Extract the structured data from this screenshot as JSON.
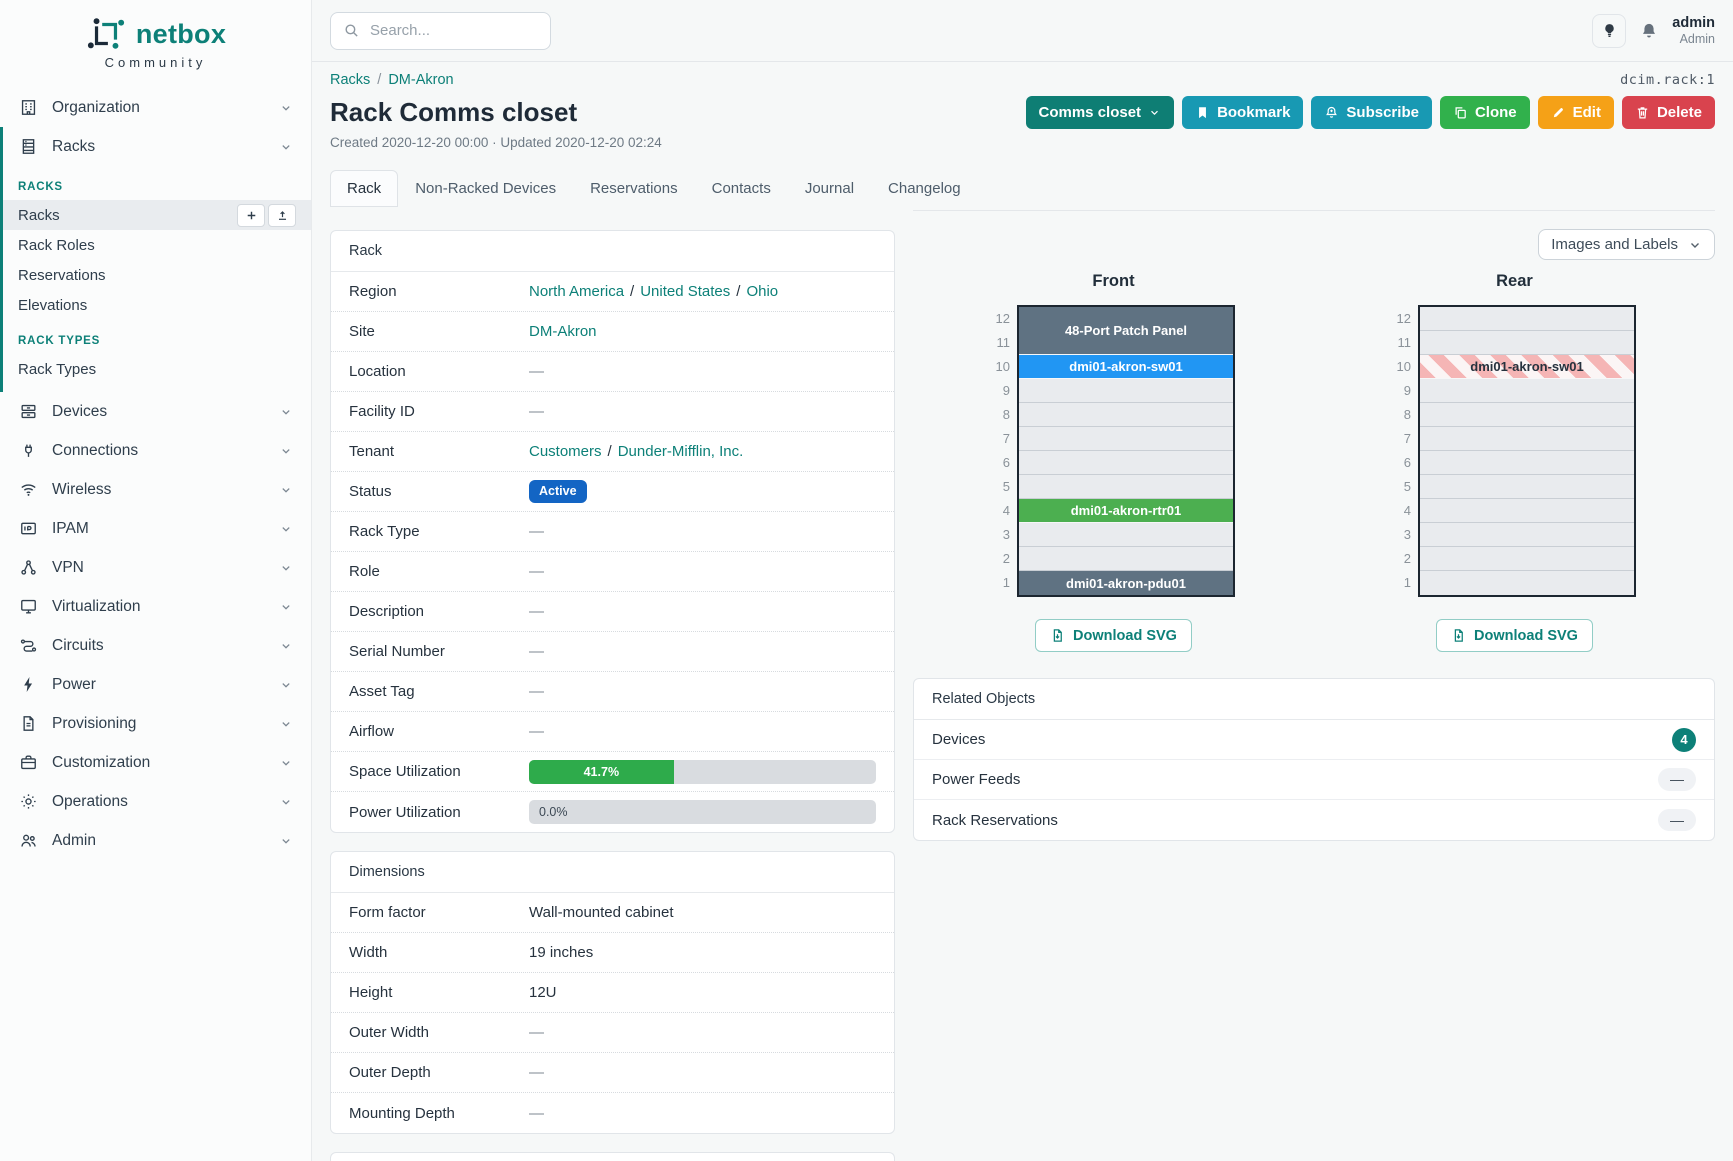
{
  "colors": {
    "accent_teal": "#0d8078",
    "status_active_badge": "#1365c4",
    "progress_green": "#2eab4b",
    "device_blue": "#2196f3",
    "device_green": "#4caf50",
    "device_slate": "#5f7282",
    "button_info": "#1899b3",
    "button_success": "#31b14c",
    "button_warning": "#f5a117",
    "button_danger": "#d9434e"
  },
  "brand": {
    "name": "netbox",
    "subtitle": "Community"
  },
  "header": {
    "search_placeholder": "Search...",
    "user_name": "admin",
    "user_role": "Admin"
  },
  "sidebar": {
    "top_group": {
      "label": "Organization",
      "icon": "building-icon"
    },
    "expanded_group": {
      "label": "Racks",
      "icon": "rack-icon",
      "sections": [
        {
          "title": "RACKS",
          "items": [
            {
              "label": "Racks",
              "active": true
            },
            {
              "label": "Rack Roles"
            },
            {
              "label": "Reservations"
            },
            {
              "label": "Elevations"
            }
          ]
        },
        {
          "title": "RACK TYPES",
          "items": [
            {
              "label": "Rack Types"
            }
          ]
        }
      ]
    },
    "groups": [
      {
        "label": "Devices",
        "icon": "server-icon"
      },
      {
        "label": "Connections",
        "icon": "plug-icon"
      },
      {
        "label": "Wireless",
        "icon": "wifi-icon"
      },
      {
        "label": "IPAM",
        "icon": "ip-card-icon"
      },
      {
        "label": "VPN",
        "icon": "network-icon"
      },
      {
        "label": "Virtualization",
        "icon": "monitor-icon"
      },
      {
        "label": "Circuits",
        "icon": "route-icon"
      },
      {
        "label": "Power",
        "icon": "bolt-icon"
      },
      {
        "label": "Provisioning",
        "icon": "document-icon"
      },
      {
        "label": "Customization",
        "icon": "briefcase-icon"
      },
      {
        "label": "Operations",
        "icon": "gear-icon"
      },
      {
        "label": "Admin",
        "icon": "users-icon"
      }
    ]
  },
  "page": {
    "breadcrumb": [
      "Racks",
      "DM-Akron"
    ],
    "object_id": "dcim.rack:1",
    "title": "Rack Comms closet",
    "meta": "Created 2020-12-20 00:00 · Updated 2020-12-20 02:24",
    "actions": [
      {
        "label": "Comms closet",
        "style": "context",
        "chevron": true
      },
      {
        "label": "Bookmark",
        "icon": "bookmark-icon",
        "style": "info"
      },
      {
        "label": "Subscribe",
        "icon": "bell-plus-icon",
        "style": "info"
      },
      {
        "label": "Clone",
        "icon": "copy-icon",
        "style": "success"
      },
      {
        "label": "Edit",
        "icon": "pencil-icon",
        "style": "warning"
      },
      {
        "label": "Delete",
        "icon": "trash-icon",
        "style": "danger"
      }
    ],
    "tabs": [
      {
        "label": "Rack",
        "active": true
      },
      {
        "label": "Non-Racked Devices"
      },
      {
        "label": "Reservations"
      },
      {
        "label": "Contacts"
      },
      {
        "label": "Journal"
      },
      {
        "label": "Changelog"
      }
    ]
  },
  "rack_panel": {
    "title": "Rack",
    "labels": {
      "region": "Region",
      "site": "Site",
      "location": "Location",
      "facility_id": "Facility ID",
      "tenant": "Tenant",
      "status": "Status",
      "rack_type": "Rack Type",
      "role": "Role",
      "description": "Description",
      "serial_number": "Serial Number",
      "asset_tag": "Asset Tag",
      "airflow": "Airflow",
      "space_utilization": "Space Utilization",
      "power_utilization": "Power Utilization"
    },
    "values": {
      "region": [
        "North America",
        "United States",
        "Ohio"
      ],
      "site": "DM-Akron",
      "location": "—",
      "facility_id": "—",
      "tenant": [
        "Customers",
        "Dunder-Mifflin, Inc."
      ],
      "status": "Active",
      "rack_type": "—",
      "role": "—",
      "description": "—",
      "serial_number": "—",
      "asset_tag": "—",
      "airflow": "—",
      "space_utilization": "41.7%",
      "power_utilization": "0.0%"
    }
  },
  "dimensions_panel": {
    "title": "Dimensions",
    "labels": {
      "form_factor": "Form factor",
      "width": "Width",
      "height": "Height",
      "outer_width": "Outer Width",
      "outer_depth": "Outer Depth",
      "mounting_depth": "Mounting Depth"
    },
    "values": {
      "form_factor": "Wall-mounted cabinet",
      "width": "19 inches",
      "height": "12U",
      "outer_width": "—",
      "outer_depth": "—",
      "mounting_depth": "—"
    }
  },
  "elevations": {
    "view_select": "Images and Labels",
    "download_label": "Download SVG",
    "front": {
      "title": "Front",
      "units": [
        12,
        11,
        10,
        9,
        8,
        7,
        6,
        5,
        4,
        3,
        2,
        1
      ],
      "devices": [
        {
          "top_unit": 12,
          "u_height": 2,
          "label": "48-Port Patch Panel",
          "style": "slate"
        },
        {
          "top_unit": 10,
          "u_height": 1,
          "label": "dmi01-akron-sw01",
          "style": "blue"
        },
        {
          "top_unit": 4,
          "u_height": 1,
          "label": "dmi01-akron-rtr01",
          "style": "green"
        },
        {
          "top_unit": 1,
          "u_height": 1,
          "label": "dmi01-akron-pdu01",
          "style": "slate"
        }
      ]
    },
    "rear": {
      "title": "Rear",
      "units": [
        12,
        11,
        10,
        9,
        8,
        7,
        6,
        5,
        4,
        3,
        2,
        1
      ],
      "devices": [
        {
          "top_unit": 10,
          "u_height": 1,
          "label": "dmi01-akron-sw01",
          "style": "striped"
        }
      ]
    }
  },
  "related_panel": {
    "title": "Related Objects",
    "rows": [
      {
        "label": "Devices",
        "count": "4"
      },
      {
        "label": "Power Feeds",
        "count": "—"
      },
      {
        "label": "Rack Reservations",
        "count": "—"
      }
    ]
  }
}
